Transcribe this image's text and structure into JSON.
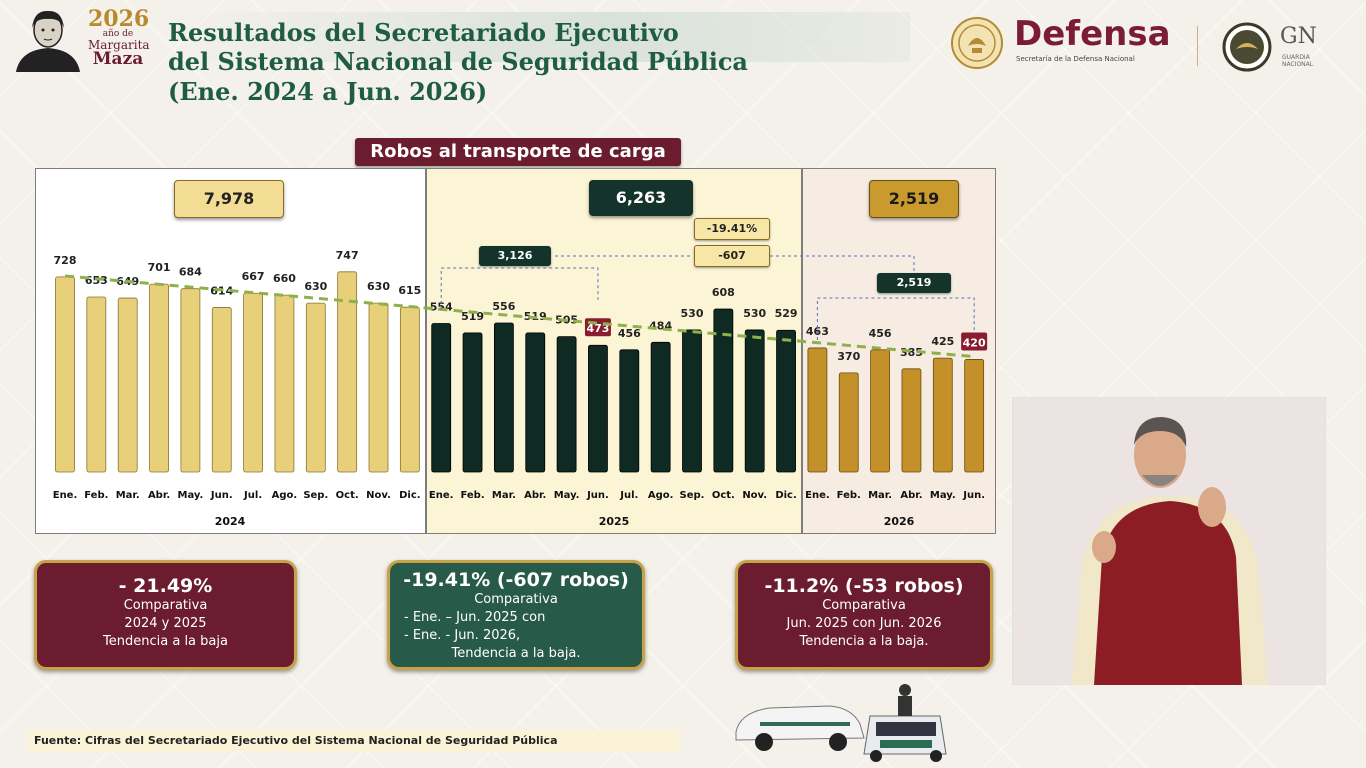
{
  "header": {
    "year_logo": {
      "year": "2026",
      "small": "año de",
      "name1": "Margarita",
      "name2": "Maza"
    },
    "title_line1": "Resultados del Secretariado Ejecutivo",
    "title_line2": "del Sistema Nacional de Seguridad Pública",
    "title_line3": "(Ene. 2024 a Jun. 2026)",
    "defensa": "Defensa",
    "defensa_sub": "Secretaría de la Defensa Nacional",
    "gn": "GN",
    "gn_sub": "GUARDIA NACIONAL"
  },
  "colors": {
    "gold_bar": "#e8cf7a",
    "dark_bar": "#0f2a22",
    "brown_bar": "#c3902a",
    "highlight": "#8a1c30",
    "trend": "#8fb04a"
  },
  "chart_data": {
    "type": "bar",
    "title": "Robos al transporte de carga",
    "ylim": [
      0,
      800
    ],
    "grid": false,
    "groups": [
      {
        "year": "2024",
        "total": "7,978",
        "categories": [
          "Ene.",
          "Feb.",
          "Mar.",
          "Abr.",
          "May.",
          "Jun.",
          "Jul.",
          "Ago.",
          "Sep.",
          "Oct.",
          "Nov.",
          "Dic."
        ],
        "values": [
          728,
          653,
          649,
          701,
          684,
          614,
          667,
          660,
          630,
          747,
          630,
          615
        ]
      },
      {
        "year": "2025",
        "total": "6,263",
        "categories": [
          "Ene.",
          "Feb.",
          "Mar.",
          "Abr.",
          "May.",
          "Jun.",
          "Jul.",
          "Ago.",
          "Sep.",
          "Oct.",
          "Nov.",
          "Dic."
        ],
        "values": [
          554,
          519,
          556,
          519,
          505,
          473,
          456,
          484,
          530,
          608,
          530,
          529
        ],
        "highlight_index": 5,
        "first_half_total": "3,126",
        "change_pct": "-19.41%",
        "change_abs": "-607"
      },
      {
        "year": "2026",
        "total": "2,519",
        "categories": [
          "Ene.",
          "Feb.",
          "Mar.",
          "Abr.",
          "May.",
          "Jun."
        ],
        "values": [
          463,
          370,
          456,
          385,
          425,
          420
        ],
        "highlight_index": 5,
        "first_half_total": "2,519"
      }
    ]
  },
  "summary": {
    "box1": {
      "headline": "- 21.49%",
      "line1": "Comparativa",
      "line2": "2024 y 2025",
      "line3": "Tendencia a la baja"
    },
    "box2": {
      "headline": "-19.41% (-607 robos)",
      "line1": "Comparativa",
      "line2": "-    Ene. – Jun. 2025 con",
      "line3": "-    Ene. - Jun. 2026,",
      "line4": "Tendencia a la baja."
    },
    "box3": {
      "headline": "-11.2% (-53 robos)",
      "line1": "Comparativa",
      "line2": "Jun. 2025 con Jun. 2026",
      "line3": "Tendencia a la baja."
    }
  },
  "source": "Fuente: Cifras del Secretariado Ejecutivo del Sistema Nacional de Seguridad Pública"
}
